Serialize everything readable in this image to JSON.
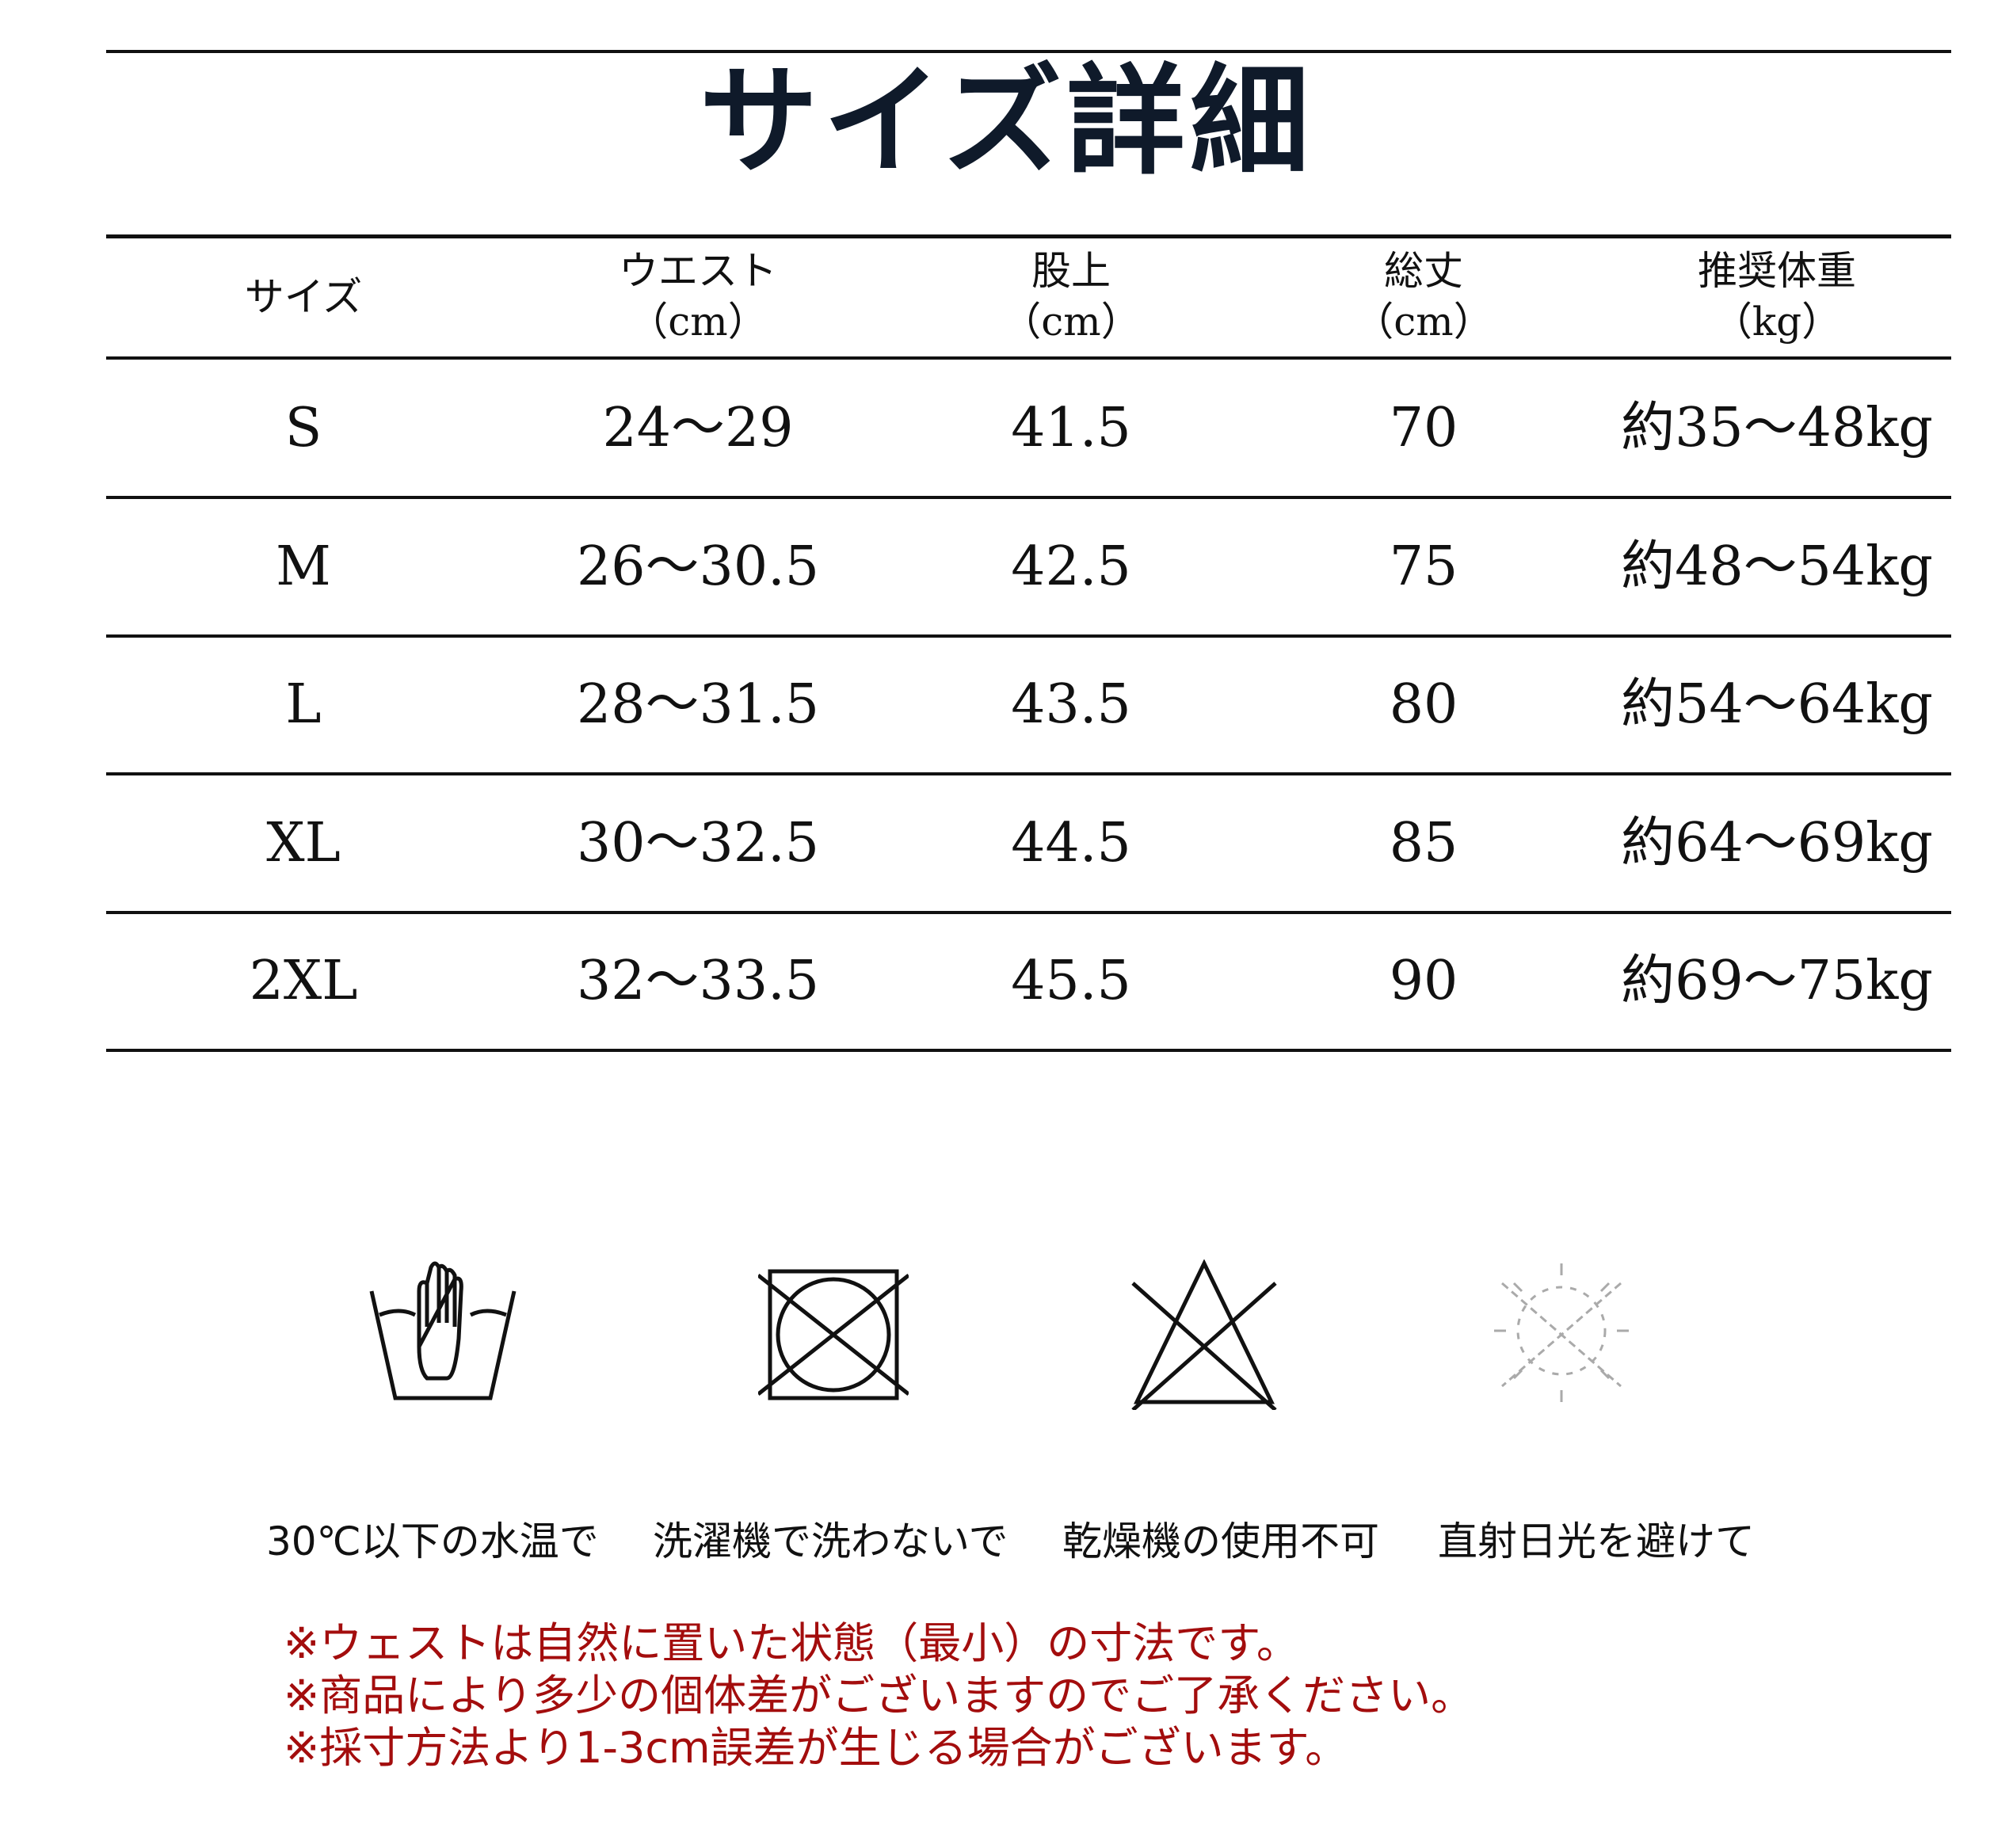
{
  "title": "サイズ詳細",
  "table": {
    "headers": [
      {
        "label": "サイズ",
        "unit": ""
      },
      {
        "label": "ウエスト",
        "unit": "（cm）"
      },
      {
        "label": "股上",
        "unit": "（cm）"
      },
      {
        "label": "総丈",
        "unit": "（cm）"
      },
      {
        "label": "推奨体重",
        "unit": "（kg）"
      }
    ],
    "rows": [
      [
        "S",
        "24～29",
        "41.5",
        "70",
        "約35～48kg"
      ],
      [
        "M",
        "26～30.5",
        "42.5",
        "75",
        "約48～54kg"
      ],
      [
        "L",
        "28～31.5",
        "43.5",
        "80",
        "約54～64kg"
      ],
      [
        "XL",
        "30～32.5",
        "44.5",
        "85",
        "約64～69kg"
      ],
      [
        "2XL",
        "32～33.5",
        "45.5",
        "90",
        "約69～75kg"
      ]
    ]
  },
  "care": [
    {
      "icon": "hand-wash-icon",
      "label": "30℃以下の水温で"
    },
    {
      "icon": "no-tumble-dry-icon",
      "label": "洗濯機で洗わないで"
    },
    {
      "icon": "no-bleach-icon",
      "label": "乾燥機の使用不可"
    },
    {
      "icon": "no-sun-icon",
      "label": "直射日光を避けて"
    }
  ],
  "notes": [
    "※ウェストは自然に置いた状態（最小）の寸法です。",
    "※商品により多少の個体差がございますのでご了承ください。",
    "※採寸方法より1-3cm誤差が生じる場合がございます。"
  ],
  "colors": {
    "note": "#a30d0d",
    "title": "#0f1a2a"
  }
}
